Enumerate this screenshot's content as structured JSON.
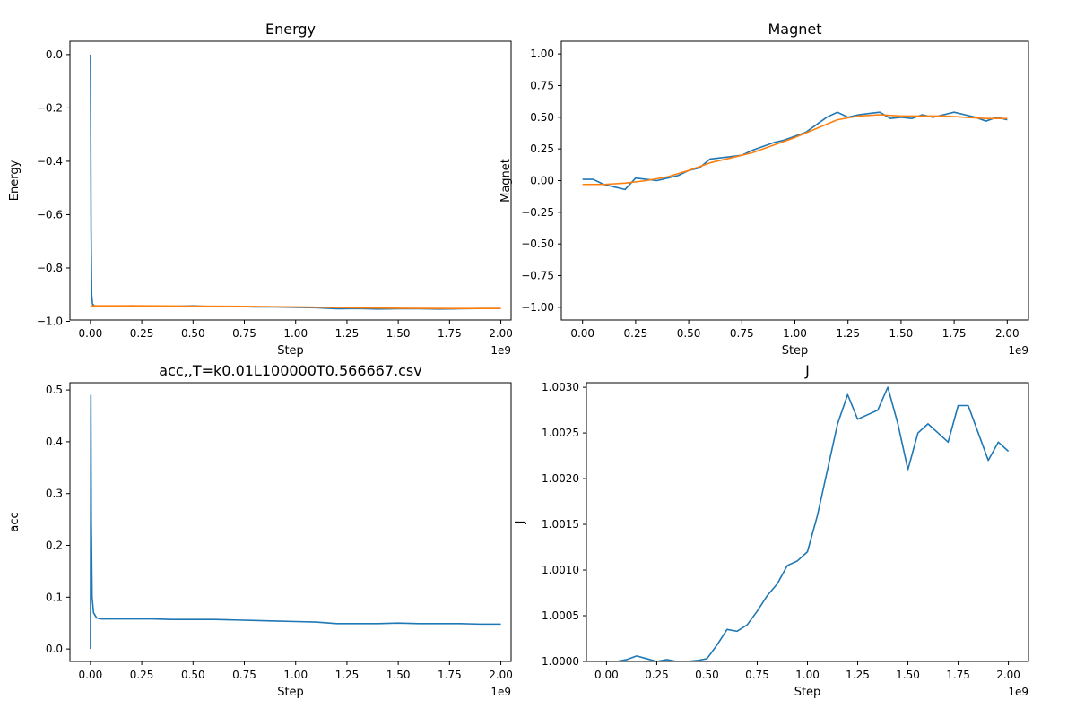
{
  "chart_data": [
    {
      "id": "energy",
      "type": "line",
      "title": "Energy",
      "xlabel": "Step",
      "ylabel": "Energy",
      "x_offset_label": "1e9",
      "x_scale": 1000000000,
      "xlim": [
        -0.1,
        2.05
      ],
      "ylim": [
        -0.995,
        0.05
      ],
      "xticks": [
        0.0,
        0.25,
        0.5,
        0.75,
        1.0,
        1.25,
        1.5,
        1.75,
        2.0
      ],
      "xtick_labels": [
        "0.00",
        "0.25",
        "0.50",
        "0.75",
        "1.00",
        "1.25",
        "1.50",
        "1.75",
        "2.00"
      ],
      "yticks": [
        0.0,
        -0.2,
        -0.4,
        -0.6,
        -0.8,
        -1.0
      ],
      "ytick_labels": [
        "0.0",
        "−0.2",
        "−0.4",
        "−0.6",
        "−0.8",
        "−1.0"
      ],
      "grid": false,
      "series": [
        {
          "color": "#1f77b4",
          "x": [
            0.0,
            0.003,
            0.006,
            0.01,
            0.02,
            0.05,
            0.1,
            0.2,
            0.3,
            0.4,
            0.5,
            0.6,
            0.7,
            0.8,
            0.9,
            1.0,
            1.1,
            1.2,
            1.3,
            1.4,
            1.5,
            1.6,
            1.7,
            1.8,
            1.9,
            2.0
          ],
          "y": [
            0.0,
            -0.65,
            -0.9,
            -0.935,
            -0.942,
            -0.943,
            -0.944,
            -0.942,
            -0.943,
            -0.944,
            -0.942,
            -0.945,
            -0.944,
            -0.946,
            -0.946,
            -0.948,
            -0.949,
            -0.953,
            -0.952,
            -0.954,
            -0.953,
            -0.953,
            -0.954,
            -0.953,
            -0.952,
            -0.952
          ]
        },
        {
          "color": "#ff7f0e",
          "x": [
            0.0,
            0.25,
            0.5,
            0.75,
            1.0,
            1.25,
            1.5,
            1.75,
            2.0
          ],
          "y": [
            -0.942,
            -0.942,
            -0.943,
            -0.944,
            -0.946,
            -0.949,
            -0.951,
            -0.952,
            -0.952
          ]
        }
      ]
    },
    {
      "id": "magnet",
      "type": "line",
      "title": "Magnet",
      "xlabel": "Step",
      "ylabel": "Magnet",
      "x_offset_label": "1e9",
      "x_scale": 1000000000,
      "xlim": [
        -0.1,
        2.1
      ],
      "ylim": [
        -1.1,
        1.1
      ],
      "xticks": [
        0.0,
        0.25,
        0.5,
        0.75,
        1.0,
        1.25,
        1.5,
        1.75,
        2.0
      ],
      "xtick_labels": [
        "0.00",
        "0.25",
        "0.50",
        "0.75",
        "1.00",
        "1.25",
        "1.50",
        "1.75",
        "2.00"
      ],
      "yticks": [
        1.0,
        0.75,
        0.5,
        0.25,
        0.0,
        -0.25,
        -0.5,
        -0.75,
        -1.0
      ],
      "ytick_labels": [
        "1.00",
        "0.75",
        "0.50",
        "0.25",
        "0.00",
        "−0.25",
        "−0.50",
        "−0.75",
        "−1.00"
      ],
      "grid": false,
      "series": [
        {
          "color": "#1f77b4",
          "x": [
            0.0,
            0.05,
            0.1,
            0.15,
            0.2,
            0.25,
            0.3,
            0.35,
            0.4,
            0.45,
            0.5,
            0.55,
            0.6,
            0.65,
            0.7,
            0.75,
            0.8,
            0.85,
            0.9,
            0.95,
            1.0,
            1.05,
            1.1,
            1.15,
            1.2,
            1.25,
            1.3,
            1.35,
            1.4,
            1.45,
            1.5,
            1.55,
            1.6,
            1.65,
            1.7,
            1.75,
            1.8,
            1.85,
            1.9,
            1.95,
            2.0
          ],
          "y": [
            0.01,
            0.01,
            -0.03,
            -0.05,
            -0.07,
            0.02,
            0.01,
            0.0,
            0.02,
            0.04,
            0.08,
            0.1,
            0.17,
            0.18,
            0.19,
            0.2,
            0.24,
            0.27,
            0.3,
            0.32,
            0.35,
            0.38,
            0.44,
            0.5,
            0.54,
            0.5,
            0.52,
            0.53,
            0.54,
            0.49,
            0.5,
            0.49,
            0.52,
            0.5,
            0.52,
            0.54,
            0.52,
            0.5,
            0.47,
            0.5,
            0.48
          ]
        },
        {
          "color": "#ff7f0e",
          "x": [
            0.0,
            0.1,
            0.2,
            0.3,
            0.4,
            0.5,
            0.6,
            0.7,
            0.8,
            0.9,
            1.0,
            1.1,
            1.2,
            1.3,
            1.4,
            1.5,
            1.6,
            1.7,
            1.8,
            1.9,
            2.0
          ],
          "y": [
            -0.03,
            -0.03,
            -0.02,
            0.0,
            0.03,
            0.08,
            0.14,
            0.18,
            0.22,
            0.28,
            0.34,
            0.41,
            0.48,
            0.51,
            0.52,
            0.51,
            0.51,
            0.51,
            0.5,
            0.49,
            0.49
          ]
        }
      ]
    },
    {
      "id": "acc",
      "type": "line",
      "title": "acc,,T=k0.01L100000T0.566667.csv",
      "xlabel": "Step",
      "ylabel": "acc",
      "x_offset_label": "1e9",
      "x_scale": 1000000000,
      "xlim": [
        -0.1,
        2.05
      ],
      "ylim": [
        -0.024,
        0.514
      ],
      "xticks": [
        0.0,
        0.25,
        0.5,
        0.75,
        1.0,
        1.25,
        1.5,
        1.75,
        2.0
      ],
      "xtick_labels": [
        "0.00",
        "0.25",
        "0.50",
        "0.75",
        "1.00",
        "1.25",
        "1.50",
        "1.75",
        "2.00"
      ],
      "yticks": [
        0.0,
        0.1,
        0.2,
        0.3,
        0.4,
        0.5
      ],
      "ytick_labels": [
        "0.0",
        "0.1",
        "0.2",
        "0.3",
        "0.4",
        "0.5"
      ],
      "grid": false,
      "series": [
        {
          "color": "#1f77b4",
          "x": [
            0.0,
            0.002,
            0.004,
            0.008,
            0.015,
            0.03,
            0.05,
            0.1,
            0.2,
            0.3,
            0.4,
            0.5,
            0.6,
            0.7,
            0.8,
            0.9,
            1.0,
            1.1,
            1.2,
            1.3,
            1.4,
            1.5,
            1.6,
            1.7,
            1.8,
            1.9,
            2.0
          ],
          "y": [
            0.0,
            0.49,
            0.25,
            0.1,
            0.07,
            0.06,
            0.058,
            0.058,
            0.058,
            0.058,
            0.057,
            0.057,
            0.057,
            0.056,
            0.055,
            0.054,
            0.053,
            0.052,
            0.049,
            0.049,
            0.049,
            0.05,
            0.049,
            0.049,
            0.049,
            0.048,
            0.048
          ]
        }
      ]
    },
    {
      "id": "J",
      "type": "line",
      "title": "J",
      "xlabel": "Step",
      "ylabel": "J",
      "x_offset_label": "1e9",
      "x_scale": 1000000000,
      "xlim": [
        -0.1,
        2.1
      ],
      "ylim": [
        1.0,
        1.00305
      ],
      "xticks": [
        0.0,
        0.25,
        0.5,
        0.75,
        1.0,
        1.25,
        1.5,
        1.75,
        2.0
      ],
      "xtick_labels": [
        "0.00",
        "0.25",
        "0.50",
        "0.75",
        "1.00",
        "1.25",
        "1.50",
        "1.75",
        "2.00"
      ],
      "yticks": [
        1.003,
        1.0025,
        1.002,
        1.0015,
        1.001,
        1.0005,
        1.0
      ],
      "ytick_labels": [
        "1.0030",
        "1.0025",
        "1.0020",
        "1.0015",
        "1.0010",
        "1.0005",
        "1.0000"
      ],
      "grid": false,
      "series": [
        {
          "color": "#1f77b4",
          "x": [
            0.0,
            0.05,
            0.1,
            0.15,
            0.2,
            0.25,
            0.3,
            0.35,
            0.4,
            0.45,
            0.5,
            0.55,
            0.6,
            0.65,
            0.7,
            0.75,
            0.8,
            0.85,
            0.9,
            0.95,
            1.0,
            1.05,
            1.1,
            1.15,
            1.2,
            1.25,
            1.3,
            1.35,
            1.4,
            1.45,
            1.5,
            1.55,
            1.6,
            1.65,
            1.7,
            1.75,
            1.8,
            1.85,
            1.9,
            1.95,
            2.0
          ],
          "y": [
            1.0,
            1.0,
            1.00002,
            1.00006,
            1.00003,
            1.0,
            1.00002,
            1.0,
            1.0,
            1.00001,
            1.00003,
            1.00018,
            1.00035,
            1.00033,
            1.0004,
            1.00055,
            1.00072,
            1.00085,
            1.00105,
            1.0011,
            1.0012,
            1.0016,
            1.0021,
            1.0026,
            1.00292,
            1.00265,
            1.0027,
            1.00275,
            1.003,
            1.0026,
            1.0021,
            1.0025,
            1.0026,
            1.0025,
            1.0024,
            1.0028,
            1.0028,
            1.0025,
            1.0022,
            1.0024,
            1.0023
          ]
        }
      ]
    }
  ]
}
